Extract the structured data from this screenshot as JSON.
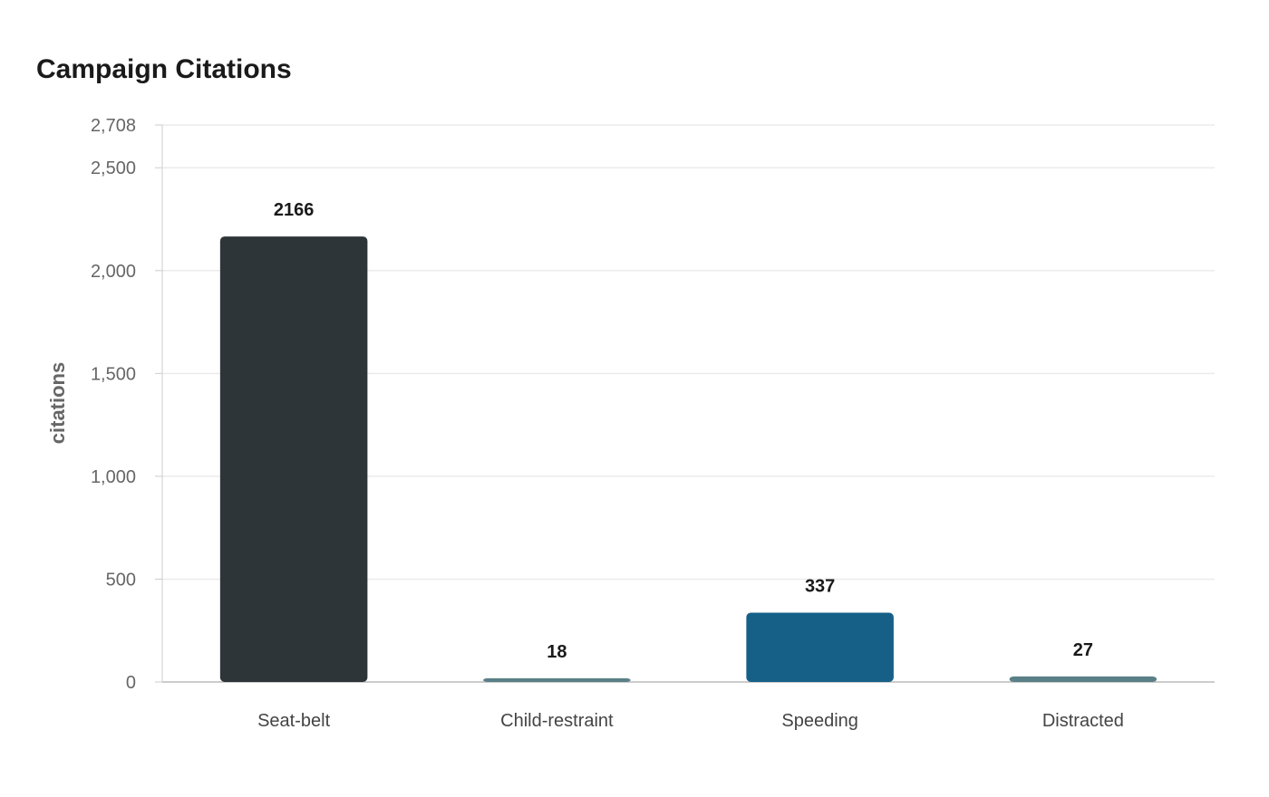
{
  "chart_data": {
    "type": "bar",
    "title": "Campaign Citations",
    "xlabel": "",
    "ylabel": "citations",
    "categories": [
      "Seat-belt",
      "Child-restraint",
      "Speeding",
      "Distracted"
    ],
    "values": [
      2166,
      18,
      337,
      27
    ],
    "colors": [
      "#2e3538",
      "#5a8087",
      "#166088",
      "#5a8087"
    ],
    "ylim": [
      0,
      2708
    ],
    "yticks": [
      0,
      500,
      1000,
      1500,
      2000,
      2500,
      2708
    ],
    "ytick_labels": [
      "0",
      "500",
      "1,000",
      "1,500",
      "2,000",
      "2,500",
      "2,708"
    ],
    "grid": true,
    "legend": "none"
  }
}
